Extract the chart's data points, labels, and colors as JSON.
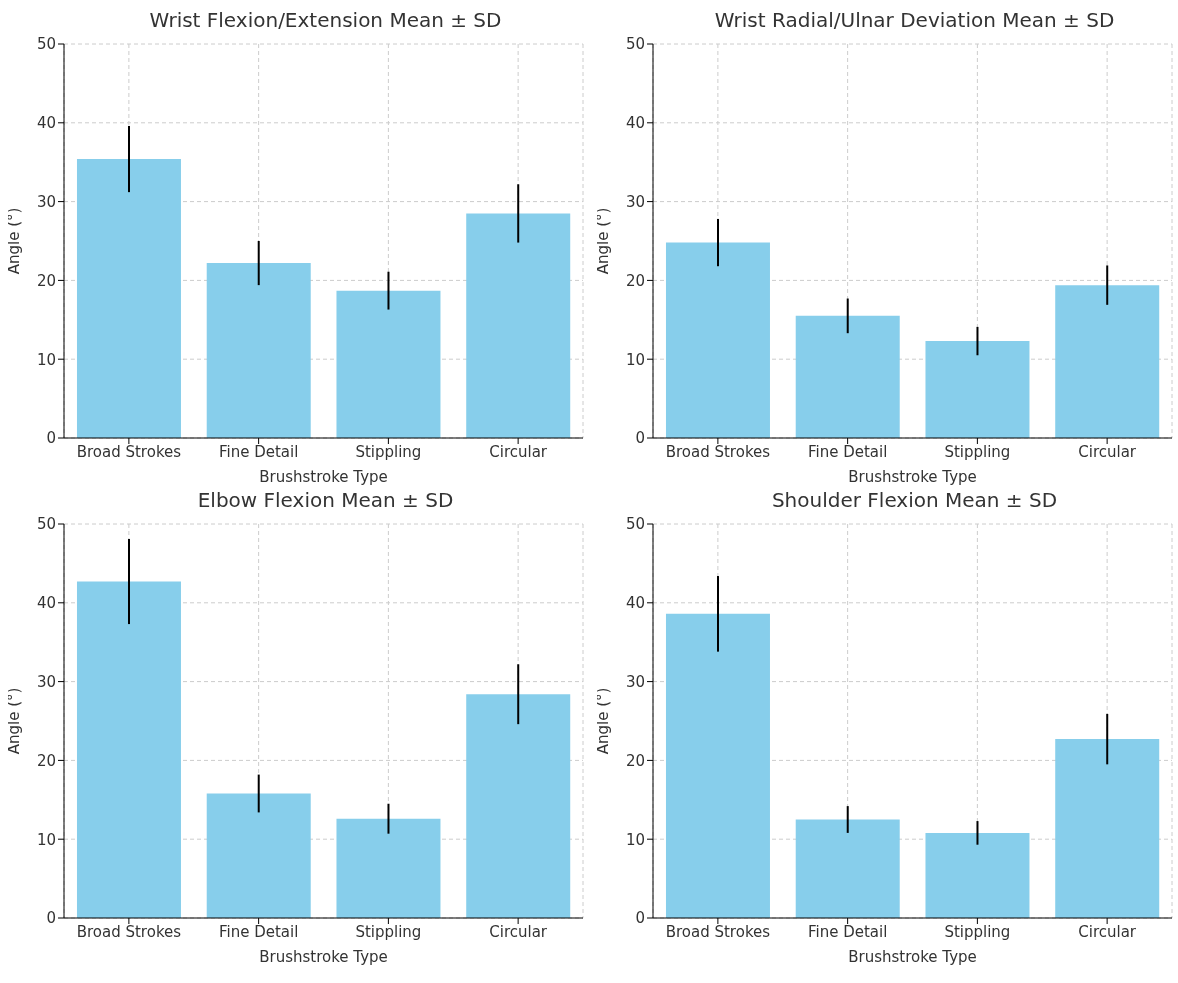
{
  "chart_data": [
    {
      "type": "bar",
      "title": "Wrist Flexion/Extension Mean ± SD",
      "xlabel": "Brushstroke Type",
      "ylabel": "Angle (°)",
      "categories": [
        "Broad Strokes",
        "Fine Detail",
        "Stippling",
        "Circular"
      ],
      "values": [
        35.4,
        22.2,
        18.7,
        28.5
      ],
      "errors": [
        4.2,
        2.8,
        2.4,
        3.7
      ],
      "color": "#87ceeb",
      "ylim": [
        0,
        50
      ],
      "yticks": [
        0,
        10,
        20,
        30,
        40,
        50
      ],
      "grid": true
    },
    {
      "type": "bar",
      "title": "Wrist Radial/Ulnar Deviation Mean ± SD",
      "xlabel": "Brushstroke Type",
      "ylabel": "Angle (°)",
      "categories": [
        "Broad Strokes",
        "Fine Detail",
        "Stippling",
        "Circular"
      ],
      "values": [
        24.8,
        15.5,
        12.3,
        19.4
      ],
      "errors": [
        3.0,
        2.2,
        1.8,
        2.5
      ],
      "color": "#87ceeb",
      "ylim": [
        0,
        50
      ],
      "yticks": [
        0,
        10,
        20,
        30,
        40,
        50
      ],
      "grid": true
    },
    {
      "type": "bar",
      "title": "Elbow Flexion Mean ± SD",
      "xlabel": "Brushstroke Type",
      "ylabel": "Angle (°)",
      "categories": [
        "Broad Strokes",
        "Fine Detail",
        "Stippling",
        "Circular"
      ],
      "values": [
        42.7,
        15.8,
        12.6,
        28.4
      ],
      "errors": [
        5.4,
        2.4,
        1.9,
        3.8
      ],
      "color": "#87ceeb",
      "ylim": [
        0,
        50
      ],
      "yticks": [
        0,
        10,
        20,
        30,
        40,
        50
      ],
      "grid": true
    },
    {
      "type": "bar",
      "title": "Shoulder Flexion Mean ± SD",
      "xlabel": "Brushstroke Type",
      "ylabel": "Angle (°)",
      "categories": [
        "Broad Strokes",
        "Fine Detail",
        "Stippling",
        "Circular"
      ],
      "values": [
        38.6,
        12.5,
        10.8,
        22.7
      ],
      "errors": [
        4.8,
        1.7,
        1.5,
        3.2
      ],
      "color": "#87ceeb",
      "ylim": [
        0,
        50
      ],
      "yticks": [
        0,
        10,
        20,
        30,
        40,
        50
      ],
      "grid": true
    }
  ]
}
